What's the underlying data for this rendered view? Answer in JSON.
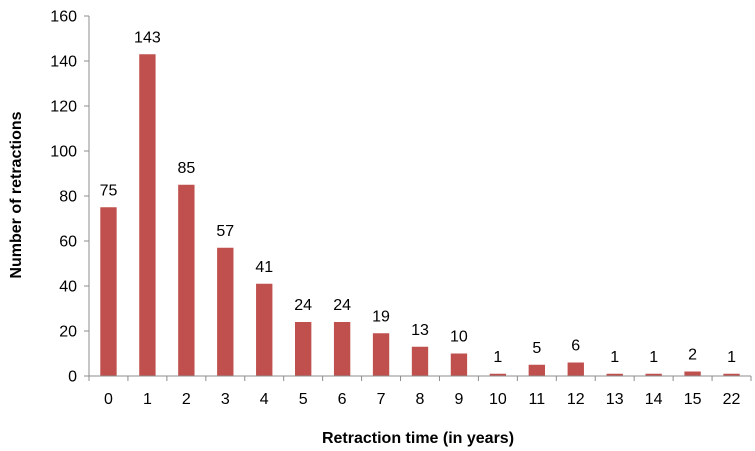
{
  "chart_data": {
    "type": "bar",
    "xlabel": "Retraction time (in years)",
    "ylabel": "Number of retractions",
    "categories": [
      "0",
      "1",
      "2",
      "3",
      "4",
      "5",
      "6",
      "7",
      "8",
      "9",
      "10",
      "11",
      "12",
      "13",
      "14",
      "15",
      "22"
    ],
    "series": [
      {
        "values": [
          75,
          143,
          85,
          57,
          41,
          24,
          24,
          19,
          13,
          10,
          1,
          5,
          6,
          1,
          1,
          2,
          1
        ]
      }
    ],
    "data_labels": [
      "75",
      "143",
      "85",
      "57",
      "41",
      "24",
      "24",
      "19",
      "13",
      "10",
      "1",
      "5",
      "6",
      "1",
      "1",
      "2",
      "1"
    ],
    "ylim": [
      0,
      160
    ],
    "yticks": [
      0,
      20,
      40,
      60,
      80,
      100,
      120,
      140,
      160
    ],
    "ytick_labels": [
      "0",
      "20",
      "40",
      "60",
      "80",
      "100",
      "120",
      "140",
      "160"
    ],
    "grid": false,
    "legend": "none",
    "bar_color": "#c0504d"
  }
}
